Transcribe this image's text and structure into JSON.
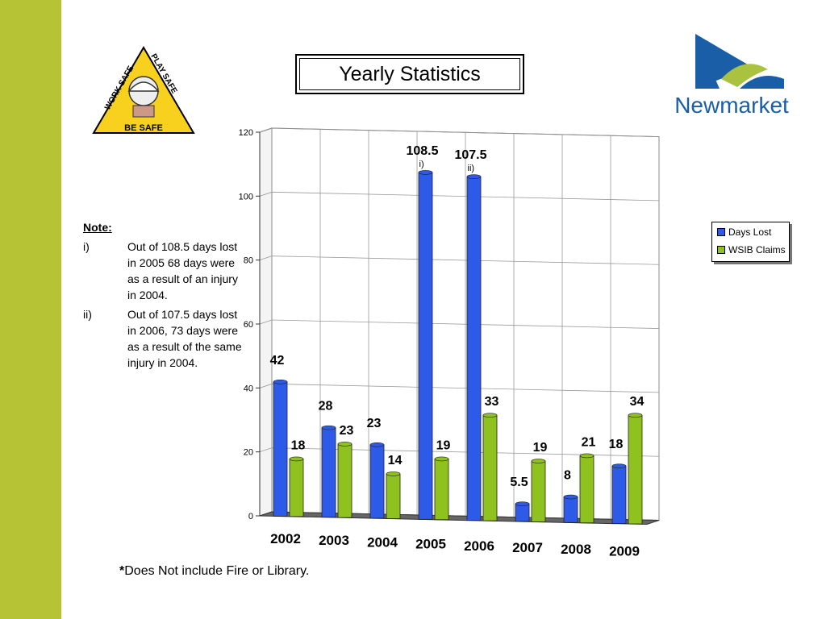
{
  "title": "Yearly Statistics",
  "note": {
    "heading": "Note:",
    "items": [
      {
        "num": "i)",
        "text": "Out of 108.5 days lost in 2005 68 days were as a result of an injury in 2004."
      },
      {
        "num": "ii)",
        "text": "Out of 107.5 days lost in 2006, 73 days were as a result of the same injury in 2004."
      }
    ]
  },
  "footnote": {
    "mark": "*",
    "text": "Does Not include Fire or Library."
  },
  "logos": {
    "safety": {
      "top": "WORK SAFE",
      "right": "PLAY SAFE",
      "bottom": "BE SAFE"
    },
    "brand": "Newmarket"
  },
  "chart_data": {
    "type": "bar",
    "categories": [
      "2002",
      "2003",
      "2004",
      "2005",
      "2006",
      "2007",
      "2008",
      "2009"
    ],
    "series": [
      {
        "name": "Days Lost",
        "values": [
          42,
          28,
          23,
          108.5,
          107.5,
          5.5,
          8,
          18
        ],
        "color": "#2e5ae8"
      },
      {
        "name": "WSIB Claims",
        "values": [
          18,
          23,
          14,
          19,
          33,
          19,
          21,
          34
        ],
        "color": "#8fc21f"
      }
    ],
    "annotations": [
      {
        "category": "2005",
        "series": "Days Lost",
        "text": "i)"
      },
      {
        "category": "2006",
        "series": "Days Lost",
        "text": "ii)"
      }
    ],
    "ylim": [
      0,
      120
    ],
    "yticks": [
      0,
      20,
      40,
      60,
      80,
      100,
      120
    ],
    "grid": true,
    "legend_position": "right"
  }
}
